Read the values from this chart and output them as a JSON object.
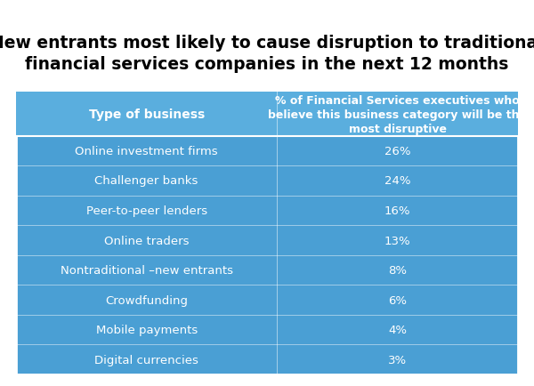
{
  "title_line1": "New entrants most likely to cause disruption to traditional",
  "title_line2": "financial services companies in the next 12 months",
  "col1_header": "Type of business",
  "col2_header": "% of Financial Services executives who\nbelieve this business category will be the\nmost disruptive",
  "rows": [
    {
      "label": "Online investment firms",
      "value": "26%"
    },
    {
      "label": "Challenger banks",
      "value": "24%"
    },
    {
      "label": "Peer-to-peer lenders",
      "value": "16%"
    },
    {
      "label": "Online traders",
      "value": "13%"
    },
    {
      "label": "Nontraditional –new entrants",
      "value": "8%"
    },
    {
      "label": "Crowdfunding",
      "value": "6%"
    },
    {
      "label": "Mobile payments",
      "value": "4%"
    },
    {
      "label": "Digital currencies",
      "value": "3%"
    }
  ],
  "table_bg_color": "#4A9FD4",
  "header_bg_color": "#5AAEDE",
  "text_color": "#FFFFFF",
  "title_color": "#000000",
  "divider_color": "#FFFFFF",
  "background_color": "#FFFFFF",
  "title_fontsize": 13.5,
  "header_fontsize": 9,
  "row_fontsize": 9.5,
  "fig_width": 6.0,
  "fig_height": 4.35,
  "dpi": 100
}
